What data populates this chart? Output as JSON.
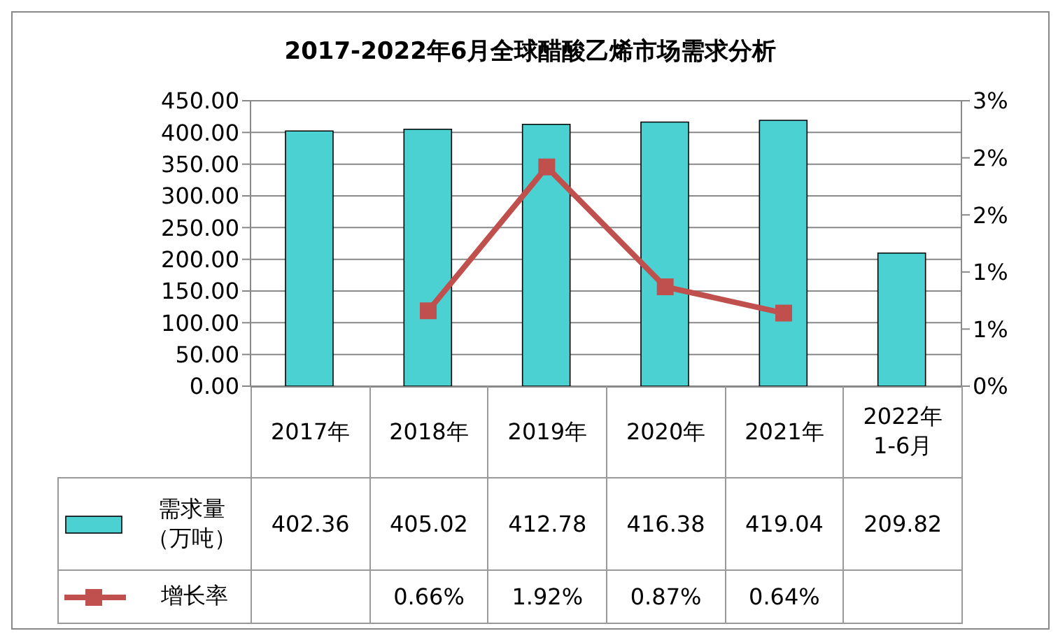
{
  "chart_data": {
    "type": "bar",
    "title": "2017-2022年6月全球醋酸乙烯市场需求分析",
    "categories": [
      "2017年",
      "2018年",
      "2019年",
      "2020年",
      "2021年",
      "2022年1-6月"
    ],
    "series": [
      {
        "name": "需求量（万吨）",
        "color": "#4bd1d1",
        "values": [
          402.36,
          405.02,
          412.78,
          416.38,
          419.04,
          209.82
        ],
        "value_labels": [
          "402.36",
          "405.02",
          "412.78",
          "416.38",
          "419.04",
          "209.82"
        ]
      },
      {
        "name": "增长率",
        "type": "line",
        "axis": "y2",
        "color": "#c0504d",
        "values": [
          null,
          0.66,
          1.92,
          0.87,
          0.64,
          null
        ],
        "value_labels": [
          null,
          "0.66%",
          "1.92%",
          "0.87%",
          "0.64%",
          null
        ]
      }
    ],
    "ylim": [
      0,
      450
    ],
    "yticks": [
      {
        "value": 0,
        "label": "0.00"
      },
      {
        "value": 50,
        "label": "50.00"
      },
      {
        "value": 100,
        "label": "100.00"
      },
      {
        "value": 150,
        "label": "150.00"
      },
      {
        "value": 200,
        "label": "200.00"
      },
      {
        "value": 250,
        "label": "250.00"
      },
      {
        "value": 300,
        "label": "300.00"
      },
      {
        "value": 350,
        "label": "350.00"
      },
      {
        "value": 400,
        "label": "400.00"
      },
      {
        "value": 450,
        "label": "450.00"
      }
    ],
    "y2lim": [
      0,
      2.5
    ],
    "y2ticks": [
      {
        "value": 0,
        "label": "0%"
      },
      {
        "value": 0.5,
        "label": "1%"
      },
      {
        "value": 1,
        "label": "1%"
      },
      {
        "value": 1.5,
        "label": "2%"
      },
      {
        "value": 2,
        "label": "2%"
      },
      {
        "value": 2.5,
        "label": "3%"
      }
    ],
    "grid": "y",
    "legend": "bottom",
    "marker": "square",
    "line_style": "solid"
  }
}
